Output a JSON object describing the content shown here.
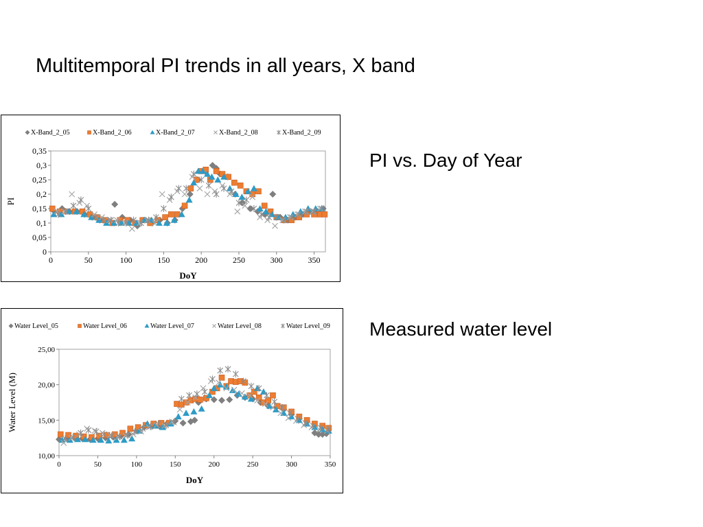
{
  "slide": {
    "title": "Multitemporal PI trends in all years, X band",
    "caption_pi": "PI vs. Day of Year",
    "caption_water": "Measured water level"
  },
  "colors": {
    "series_05": "#7f7f7f",
    "series_06": "#ed7d31",
    "series_07": "#2e9bc6",
    "series_08": "#a6a6a6",
    "series_09": "#8c8c8c",
    "plot_border": "#a0a0a0"
  },
  "chart_data": [
    {
      "type": "scatter",
      "title": "",
      "xlabel": "DoY",
      "ylabel": "PI",
      "xlim": [
        0,
        365
      ],
      "ylim": [
        0,
        0.35
      ],
      "x_ticks": [
        "0",
        "50",
        "100",
        "150",
        "200",
        "250",
        "300",
        "350"
      ],
      "y_ticks": [
        "0",
        "0,05",
        "0,1",
        "0,15",
        "0,2",
        "0,25",
        "0,3",
        "0,35"
      ],
      "grid": false,
      "legend": "top",
      "series": [
        {
          "name": "X-Band_2_05",
          "marker": "diamond",
          "color": "#7f7f7f",
          "x": [
            5,
            15,
            25,
            35,
            45,
            55,
            65,
            75,
            85,
            95,
            105,
            115,
            125,
            135,
            145,
            155,
            165,
            175,
            185,
            195,
            205,
            215,
            220,
            225,
            235,
            245,
            255,
            265,
            275,
            285,
            295,
            305,
            315,
            325,
            335,
            345,
            355,
            362
          ],
          "y": [
            0.14,
            0.15,
            0.14,
            0.14,
            0.13,
            0.12,
            0.11,
            0.11,
            0.165,
            0.12,
            0.11,
            0.09,
            0.11,
            0.1,
            0.11,
            0.1,
            0.11,
            0.15,
            0.2,
            0.25,
            0.28,
            0.3,
            0.29,
            0.27,
            0.26,
            0.2,
            0.17,
            0.15,
            0.14,
            0.13,
            0.2,
            0.12,
            0.11,
            0.12,
            0.13,
            0.14,
            0.14,
            0.15
          ]
        },
        {
          "name": "X-Band_2_06",
          "marker": "square",
          "color": "#ed7d31",
          "x": [
            2,
            12,
            22,
            32,
            42,
            52,
            62,
            72,
            82,
            92,
            102,
            112,
            122,
            132,
            142,
            152,
            160,
            168,
            178,
            186,
            194,
            200,
            206,
            212,
            220,
            228,
            236,
            244,
            252,
            260,
            268,
            276,
            284,
            292,
            300,
            310,
            320,
            330,
            340,
            350,
            358,
            364
          ],
          "y": [
            0.15,
            0.14,
            0.14,
            0.14,
            0.14,
            0.13,
            0.12,
            0.11,
            0.1,
            0.11,
            0.11,
            0.1,
            0.11,
            0.1,
            0.11,
            0.12,
            0.13,
            0.13,
            0.16,
            0.22,
            0.25,
            0.28,
            0.285,
            0.25,
            0.28,
            0.27,
            0.26,
            0.24,
            0.23,
            0.21,
            0.2,
            0.21,
            0.16,
            0.14,
            0.12,
            0.11,
            0.11,
            0.12,
            0.13,
            0.13,
            0.13,
            0.13
          ]
        },
        {
          "name": "X-Band_2_07",
          "marker": "triangle",
          "color": "#2e9bc6",
          "x": [
            4,
            14,
            24,
            34,
            44,
            54,
            64,
            74,
            84,
            94,
            104,
            114,
            124,
            134,
            144,
            154,
            164,
            174,
            184,
            190,
            196,
            202,
            208,
            214,
            222,
            230,
            238,
            246,
            254,
            262,
            270,
            278,
            286,
            294,
            302,
            312,
            322,
            332,
            342,
            352,
            360
          ],
          "y": [
            0.13,
            0.13,
            0.14,
            0.14,
            0.13,
            0.12,
            0.11,
            0.1,
            0.1,
            0.1,
            0.1,
            0.1,
            0.11,
            0.11,
            0.1,
            0.1,
            0.11,
            0.13,
            0.18,
            0.24,
            0.28,
            0.28,
            0.27,
            0.26,
            0.25,
            0.26,
            0.22,
            0.2,
            0.19,
            0.21,
            0.22,
            0.15,
            0.14,
            0.13,
            0.12,
            0.12,
            0.13,
            0.14,
            0.15,
            0.15,
            0.15
          ]
        },
        {
          "name": "X-Band_2_08",
          "marker": "x",
          "color": "#a6a6a6",
          "x": [
            8,
            18,
            28,
            38,
            48,
            58,
            68,
            78,
            88,
            98,
            108,
            118,
            128,
            138,
            148,
            158,
            168,
            178,
            188,
            198,
            208,
            218,
            228,
            238,
            248,
            258,
            268,
            278,
            288,
            298,
            308,
            318,
            328,
            338,
            348,
            358
          ],
          "y": [
            0.14,
            0.14,
            0.2,
            0.17,
            0.16,
            0.13,
            0.12,
            0.11,
            0.11,
            0.1,
            0.08,
            0.1,
            0.11,
            0.1,
            0.2,
            0.18,
            0.21,
            0.2,
            0.26,
            0.22,
            0.2,
            0.21,
            0.23,
            0.2,
            0.14,
            0.16,
            0.19,
            0.12,
            0.11,
            0.09,
            0.11,
            0.12,
            0.13,
            0.14,
            0.14,
            0.15
          ]
        },
        {
          "name": "X-Band_2_09",
          "marker": "star",
          "color": "#8c8c8c",
          "x": [
            10,
            20,
            30,
            40,
            50,
            60,
            70,
            80,
            90,
            100,
            110,
            120,
            130,
            140,
            150,
            160,
            170,
            180,
            190,
            200,
            210,
            220,
            230,
            240,
            250,
            260,
            270,
            280,
            290,
            300,
            310,
            320,
            330,
            340,
            350,
            360
          ],
          "y": [
            0.13,
            0.14,
            0.16,
            0.18,
            0.15,
            0.12,
            0.11,
            0.11,
            0.1,
            0.1,
            0.11,
            0.1,
            0.11,
            0.12,
            0.15,
            0.19,
            0.22,
            0.22,
            0.27,
            0.25,
            0.23,
            0.2,
            0.22,
            0.21,
            0.17,
            0.18,
            0.15,
            0.13,
            0.12,
            0.12,
            0.11,
            0.12,
            0.13,
            0.14,
            0.14,
            0.15
          ]
        }
      ]
    },
    {
      "type": "scatter",
      "title": "",
      "xlabel": "DoY",
      "ylabel": "Water Level (M)",
      "xlim": [
        0,
        350
      ],
      "ylim": [
        10,
        25
      ],
      "x_ticks": [
        "0",
        "50",
        "100",
        "150",
        "200",
        "250",
        "300",
        "350"
      ],
      "y_ticks": [
        "10,00",
        "15,00",
        "20,00",
        "25,00"
      ],
      "grid": false,
      "legend": "top",
      "series": [
        {
          "name": "Water Level_05",
          "marker": "diamond",
          "color": "#7f7f7f",
          "x": [
            0,
            10,
            20,
            30,
            40,
            50,
            60,
            70,
            80,
            90,
            100,
            110,
            120,
            130,
            140,
            150,
            160,
            170,
            175,
            180,
            190,
            200,
            210,
            220,
            230,
            240,
            250,
            260,
            270,
            280,
            290,
            300,
            310,
            320,
            330,
            335,
            340,
            345
          ],
          "y": [
            12.3,
            12.4,
            12.5,
            12.4,
            12.3,
            12.4,
            12.5,
            12.6,
            12.8,
            13.0,
            13.5,
            14.0,
            14.2,
            14.1,
            14.6,
            14.9,
            14.6,
            14.8,
            15.0,
            17.5,
            18.0,
            17.9,
            17.8,
            17.9,
            18.5,
            18.2,
            18.0,
            17.5,
            17.0,
            16.8,
            16.5,
            15.8,
            15.2,
            14.8,
            13.2,
            13.0,
            13.0,
            13.1
          ]
        },
        {
          "name": "Water Level_06",
          "marker": "square",
          "color": "#ed7d31",
          "x": [
            2,
            12,
            22,
            32,
            42,
            52,
            62,
            72,
            82,
            92,
            102,
            112,
            122,
            132,
            142,
            152,
            158,
            164,
            170,
            176,
            182,
            190,
            198,
            204,
            210,
            216,
            222,
            228,
            234,
            240,
            246,
            252,
            258,
            264,
            270,
            276,
            282,
            290,
            300,
            310,
            320,
            330,
            340,
            348
          ],
          "y": [
            13.0,
            12.9,
            12.8,
            12.7,
            12.6,
            12.8,
            12.9,
            13.0,
            13.2,
            13.8,
            14.0,
            14.3,
            14.5,
            14.6,
            14.6,
            17.3,
            17.2,
            17.5,
            17.8,
            18.0,
            17.9,
            18.1,
            19.0,
            19.5,
            21.0,
            19.8,
            20.5,
            20.4,
            20.5,
            20.3,
            18.5,
            19.0,
            18.2,
            17.5,
            17.8,
            18.5,
            17.0,
            16.8,
            16.2,
            15.5,
            15.0,
            14.5,
            14.2,
            13.9
          ]
        },
        {
          "name": "Water Level_07",
          "marker": "triangle",
          "color": "#2e9bc6",
          "x": [
            4,
            14,
            24,
            34,
            44,
            54,
            64,
            74,
            84,
            94,
            104,
            114,
            124,
            134,
            144,
            154,
            164,
            174,
            184,
            194,
            200,
            208,
            216,
            224,
            232,
            240,
            248,
            256,
            264,
            272,
            280,
            290,
            300,
            310,
            320,
            330,
            340,
            348
          ],
          "y": [
            12.2,
            12.2,
            12.3,
            12.3,
            12.2,
            12.2,
            12.1,
            12.2,
            12.2,
            12.4,
            13.5,
            14.5,
            14.2,
            14.0,
            14.5,
            15.5,
            16.0,
            16.2,
            16.6,
            18.5,
            19.5,
            20.0,
            19.7,
            19.2,
            18.7,
            18.3,
            18.0,
            19.5,
            19.0,
            17.0,
            16.5,
            16.0,
            15.5,
            15.0,
            14.5,
            14.0,
            13.7,
            13.5
          ]
        },
        {
          "name": "Water Level_08",
          "marker": "x",
          "color": "#a6a6a6",
          "x": [
            6,
            16,
            26,
            36,
            46,
            56,
            66,
            76,
            86,
            96,
            106,
            116,
            126,
            136,
            146,
            156,
            166,
            176,
            186,
            196,
            206,
            216,
            226,
            236,
            246,
            256,
            266,
            276,
            286,
            296,
            306,
            316,
            326,
            336,
            346
          ],
          "y": [
            11.8,
            12.5,
            13.0,
            13.8,
            13.5,
            13.2,
            12.9,
            12.6,
            12.8,
            13.0,
            13.4,
            14.0,
            14.3,
            14.2,
            14.8,
            16.5,
            17.5,
            18.2,
            19.5,
            20.5,
            20.3,
            19.5,
            19.3,
            18.8,
            18.5,
            17.8,
            17.3,
            16.8,
            16.0,
            15.3,
            14.9,
            14.3,
            14.0,
            13.7,
            13.5
          ]
        },
        {
          "name": "Water Level_09",
          "marker": "star",
          "color": "#8c8c8c",
          "x": [
            8,
            18,
            28,
            38,
            48,
            58,
            68,
            78,
            88,
            98,
            108,
            118,
            128,
            138,
            148,
            158,
            168,
            178,
            188,
            198,
            208,
            218,
            228,
            238,
            248,
            258,
            268,
            278,
            288,
            298,
            308,
            318,
            328,
            338,
            348
          ],
          "y": [
            12.4,
            12.6,
            13.2,
            13.6,
            13.4,
            13.0,
            12.8,
            12.7,
            12.9,
            13.4,
            13.8,
            14.1,
            14.5,
            14.3,
            14.7,
            18.0,
            18.5,
            18.7,
            19.0,
            20.8,
            22.0,
            22.2,
            21.5,
            20.5,
            19.8,
            19.5,
            18.5,
            17.6,
            16.8,
            16.0,
            15.2,
            14.6,
            14.2,
            13.9,
            13.7
          ]
        }
      ]
    }
  ]
}
